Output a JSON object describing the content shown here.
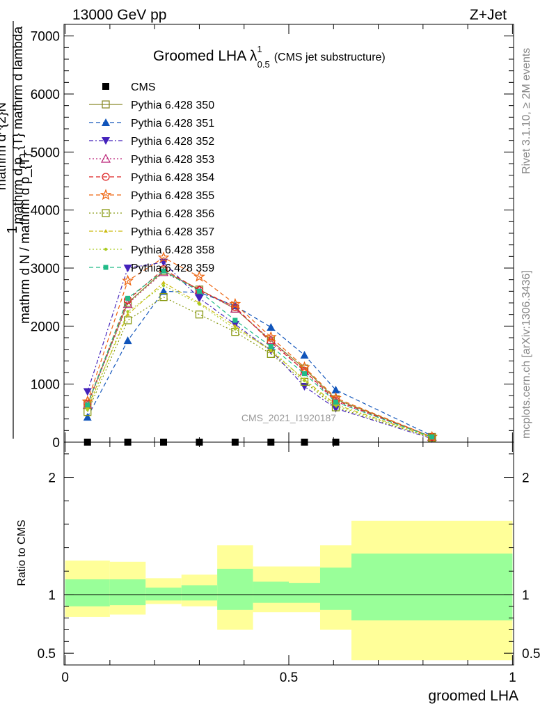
{
  "header": {
    "energy_label": "13000 GeV pp",
    "process_label": "Z+Jet"
  },
  "side_labels": {
    "rivet": "Rivet 3.1.10, ≥ 2M events",
    "mcplots": "mcplots.cern.ch [arXiv:1306.3436]"
  },
  "plot_title": {
    "main": "Groomed LHA λ",
    "sup": "1",
    "sub": "0.5",
    "note": "(CMS jet substructure)"
  },
  "watermark": "CMS_2021_I1920187",
  "colors": {
    "band_outer": "#ffff99",
    "band_inner": "#99ff99"
  },
  "chart_data": [
    {
      "type": "line",
      "ylabel_parts": {
        "num_top": "mathrm d^{2}N",
        "den_top": "mathrm d p_{T} mathrm d lambda",
        "one": "1",
        "den_main": "mathrm d N / mathrm d p_{T}"
      },
      "xlim": [
        -0.0025,
        1.0025
      ],
      "ylim": [
        0,
        7200
      ],
      "yticks": [
        0,
        1000,
        2000,
        3000,
        4000,
        5000,
        6000,
        7000
      ],
      "ytick_labels": [
        "0",
        "1000",
        "2000",
        "3000",
        "4000",
        "5000",
        "6000",
        "7000"
      ],
      "x": [
        0.05,
        0.14,
        0.22,
        0.3,
        0.38,
        0.46,
        0.535,
        0.605,
        0.82
      ],
      "series": [
        {
          "name": "CMS",
          "marker": "square-filled",
          "color": "#000000",
          "dash": "none",
          "values": [
            0,
            0,
            0,
            0,
            0,
            0,
            0,
            0,
            null
          ]
        },
        {
          "name": "Pythia 6.428 350",
          "marker": "square-open",
          "color": "#8b8b2b",
          "dash": "none",
          "values": [
            650,
            2400,
            2950,
            2630,
            2300,
            1750,
            1270,
            740,
            90
          ]
        },
        {
          "name": "Pythia 6.428 351",
          "marker": "triangle-up-filled",
          "color": "#1155bb",
          "dash": "6,4",
          "values": [
            430,
            1750,
            2600,
            2580,
            2350,
            1980,
            1500,
            900,
            110
          ]
        },
        {
          "name": "Pythia 6.428 352",
          "marker": "triangle-down-filled",
          "color": "#4422bb",
          "dash": "6,3,2,3",
          "values": [
            870,
            3000,
            3100,
            2480,
            2030,
            1580,
            960,
            580,
            60
          ]
        },
        {
          "name": "Pythia 6.428 353",
          "marker": "triangle-up-open",
          "color": "#bb2277",
          "dash": "2,3",
          "values": [
            640,
            2380,
            2930,
            2620,
            2300,
            1760,
            1220,
            700,
            90
          ]
        },
        {
          "name": "Pythia 6.428 354",
          "marker": "circle-open",
          "color": "#dd2222",
          "dash": "6,4",
          "values": [
            660,
            2450,
            2980,
            2620,
            2330,
            1720,
            1230,
            720,
            90
          ]
        },
        {
          "name": "Pythia 6.428 355",
          "marker": "star-open",
          "color": "#ee6611",
          "dash": "6,4",
          "values": [
            700,
            2780,
            3180,
            2850,
            2380,
            1810,
            1290,
            760,
            90
          ]
        },
        {
          "name": "Pythia 6.428 356",
          "marker": "square-open",
          "color": "#889911",
          "dash": "2,3",
          "values": [
            520,
            2100,
            2500,
            2200,
            1900,
            1520,
            1040,
            600,
            70
          ]
        },
        {
          "name": "Pythia 6.428 357",
          "marker": "tri-small",
          "color": "#ccbb11",
          "dash": "6,3,2,3",
          "values": [
            600,
            2200,
            2750,
            2400,
            2000,
            1570,
            1080,
            650,
            80
          ]
        },
        {
          "name": "Pythia 6.428 358",
          "marker": "dot",
          "color": "#aacc22",
          "dash": "2,3",
          "values": [
            560,
            2250,
            2700,
            2380,
            1950,
            1600,
            1060,
            630,
            80
          ]
        },
        {
          "name": "Pythia 6.428 359",
          "marker": "square-small-filled",
          "color": "#22bb88",
          "dash": "6,4",
          "values": [
            640,
            2480,
            2950,
            2600,
            2100,
            1650,
            1180,
            690,
            90
          ]
        }
      ]
    },
    {
      "type": "area",
      "ylabel": "Ratio to CMS",
      "xlabel": "groomed LHA",
      "xlim": [
        -0.0025,
        1.0025
      ],
      "ylim": [
        0.4,
        2.3
      ],
      "yticks": [
        0.5,
        1,
        2
      ],
      "ytick_labels": [
        "0.5",
        "1",
        "2"
      ],
      "xticks": [
        0,
        0.5,
        1
      ],
      "xtick_labels": [
        "0",
        "0.5",
        "1"
      ],
      "bins": [
        {
          "x0": 0.0,
          "x1": 0.1,
          "outer": [
            0.81,
            1.29
          ],
          "inner": [
            0.9,
            1.13
          ]
        },
        {
          "x0": 0.1,
          "x1": 0.18,
          "outer": [
            0.83,
            1.28
          ],
          "inner": [
            0.91,
            1.13
          ]
        },
        {
          "x0": 0.18,
          "x1": 0.26,
          "outer": [
            0.92,
            1.14
          ],
          "inner": [
            0.95,
            1.06
          ]
        },
        {
          "x0": 0.26,
          "x1": 0.34,
          "outer": [
            0.9,
            1.17
          ],
          "inner": [
            0.95,
            1.08
          ]
        },
        {
          "x0": 0.34,
          "x1": 0.42,
          "outer": [
            0.7,
            1.42
          ],
          "inner": [
            0.87,
            1.22
          ]
        },
        {
          "x0": 0.42,
          "x1": 0.5,
          "outer": [
            0.85,
            1.24
          ],
          "inner": [
            0.93,
            1.11
          ]
        },
        {
          "x0": 0.5,
          "x1": 0.57,
          "outer": [
            0.85,
            1.24
          ],
          "inner": [
            0.93,
            1.1
          ]
        },
        {
          "x0": 0.57,
          "x1": 0.64,
          "outer": [
            0.7,
            1.42
          ],
          "inner": [
            0.87,
            1.23
          ]
        },
        {
          "x0": 0.64,
          "x1": 1.0,
          "outer": [
            0.44,
            1.63
          ],
          "inner": [
            0.78,
            1.35
          ]
        }
      ],
      "reference": 1
    }
  ]
}
